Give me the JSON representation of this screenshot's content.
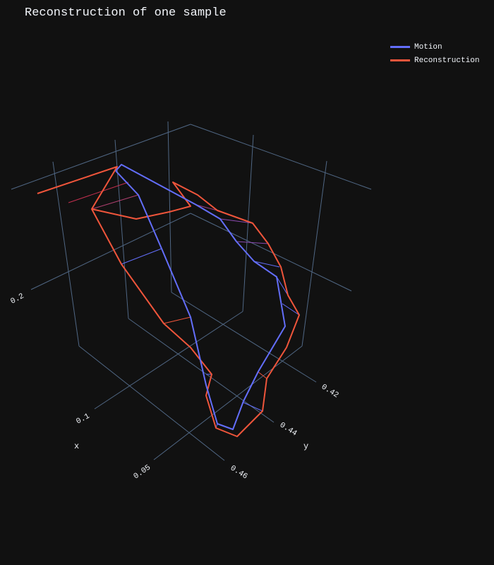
{
  "chart_data": {
    "type": "line3d",
    "title": "Reconstruction of one sample",
    "axes": {
      "x": {
        "label": "x",
        "ticks": [
          "0.2",
          "0.1",
          "0.05"
        ]
      },
      "y": {
        "label": "y",
        "ticks": [
          "0.42",
          "0.44",
          "0.46"
        ]
      },
      "z": {
        "label": "",
        "ticks": []
      }
    },
    "grid": true,
    "legend_position": "top-right",
    "series": [
      {
        "name": "Motion",
        "color": "#636efa"
      },
      {
        "name": "Reconstruction",
        "color": "#ef553b"
      }
    ]
  }
}
